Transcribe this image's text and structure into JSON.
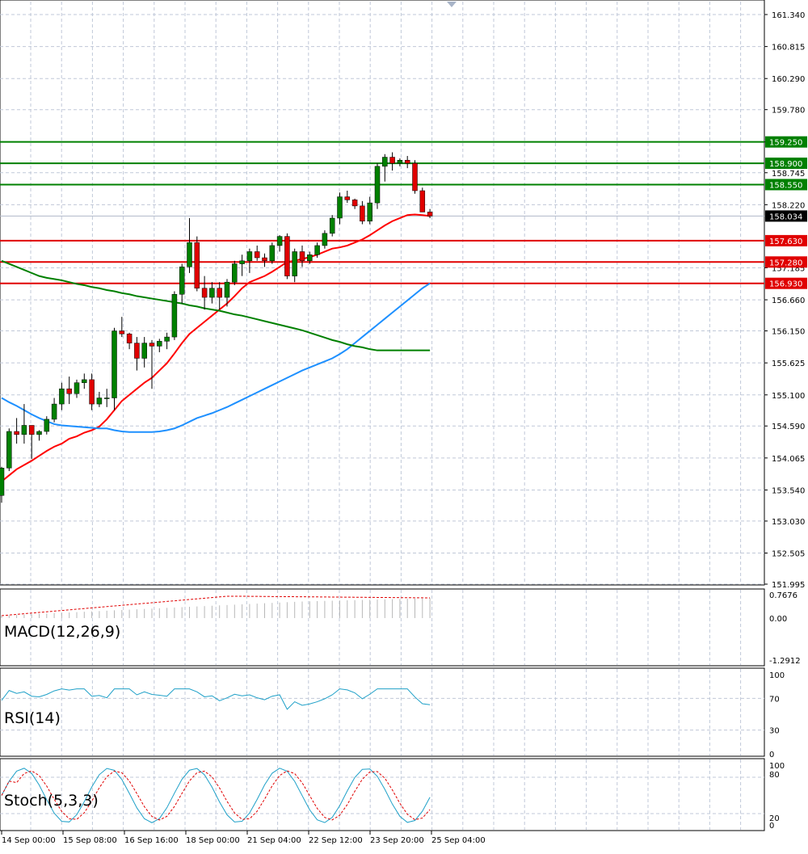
{
  "chart_data": {
    "type": "candlestick",
    "price_axis": {
      "ticks": [
        "161.340",
        "160.815",
        "160.290",
        "159.780",
        "159.250",
        "158.745",
        "158.220",
        "157.185",
        "156.660",
        "156.150",
        "155.625",
        "155.100",
        "154.590",
        "154.065",
        "153.540",
        "153.030",
        "152.505",
        "151.995"
      ],
      "ylim": [
        151.995,
        161.34
      ],
      "current_price": "158.034"
    },
    "time_axis": {
      "labels": [
        "14 Sep 00:00",
        "15 Sep 08:00",
        "16 Sep 16:00",
        "18 Sep 00:00",
        "21 Sep 04:00",
        "22 Sep 12:00",
        "23 Sep 20:00",
        "25 Sep 04:00"
      ]
    },
    "levels": [
      {
        "value": 159.25,
        "label": "159.250",
        "role": "resistance",
        "color": "#008000"
      },
      {
        "value": 158.9,
        "label": "158.900",
        "role": "resistance",
        "color": "#008000"
      },
      {
        "value": 158.55,
        "label": "158.550",
        "role": "resistance",
        "color": "#008000"
      },
      {
        "value": 157.63,
        "label": "157.630",
        "role": "support",
        "color": "#e00000"
      },
      {
        "value": 157.28,
        "label": "157.280",
        "role": "support",
        "color": "#e00000"
      },
      {
        "value": 156.93,
        "label": "156.930",
        "role": "support",
        "color": "#e00000"
      }
    ],
    "candles": [
      [
        153.45,
        153.92,
        153.33,
        153.9
      ],
      [
        153.9,
        154.55,
        153.85,
        154.5
      ],
      [
        154.5,
        154.72,
        154.3,
        154.45
      ],
      [
        154.45,
        154.95,
        154.3,
        154.6
      ],
      [
        154.6,
        154.6,
        154.05,
        154.45
      ],
      [
        154.45,
        154.52,
        154.35,
        154.5
      ],
      [
        154.5,
        154.75,
        154.45,
        154.7
      ],
      [
        154.7,
        155.05,
        154.65,
        154.95
      ],
      [
        154.95,
        155.3,
        154.85,
        155.2
      ],
      [
        155.2,
        155.4,
        154.95,
        155.12
      ],
      [
        155.12,
        155.35,
        155.05,
        155.3
      ],
      [
        155.3,
        155.45,
        155.2,
        155.35
      ],
      [
        155.35,
        155.45,
        154.85,
        154.95
      ],
      [
        154.95,
        155.15,
        154.9,
        155.05
      ],
      [
        155.05,
        155.2,
        154.9,
        155.05
      ],
      [
        155.05,
        156.2,
        154.85,
        156.15
      ],
      [
        156.15,
        156.38,
        156.05,
        156.1
      ],
      [
        156.1,
        156.12,
        155.85,
        155.95
      ],
      [
        155.95,
        156.05,
        155.5,
        155.7
      ],
      [
        155.7,
        156.05,
        155.55,
        155.95
      ],
      [
        155.95,
        156.0,
        155.2,
        155.9
      ],
      [
        155.9,
        156.02,
        155.8,
        155.98
      ],
      [
        155.98,
        156.12,
        155.85,
        156.05
      ],
      [
        156.05,
        156.8,
        156.0,
        156.75
      ],
      [
        156.75,
        157.25,
        156.6,
        157.2
      ],
      [
        157.2,
        158.0,
        157.1,
        157.6
      ],
      [
        157.6,
        157.7,
        156.8,
        156.85
      ],
      [
        156.85,
        157.05,
        156.5,
        156.7
      ],
      [
        156.7,
        156.95,
        156.6,
        156.85
      ],
      [
        156.85,
        156.95,
        156.5,
        156.7
      ],
      [
        156.7,
        157.0,
        156.55,
        156.95
      ],
      [
        156.95,
        157.3,
        156.9,
        157.25
      ],
      [
        157.25,
        157.4,
        157.05,
        157.3
      ],
      [
        157.3,
        157.5,
        157.1,
        157.45
      ],
      [
        157.45,
        157.55,
        157.3,
        157.35
      ],
      [
        157.35,
        157.42,
        157.2,
        157.3
      ],
      [
        157.3,
        157.6,
        157.25,
        157.55
      ],
      [
        157.55,
        157.72,
        157.45,
        157.7
      ],
      [
        157.7,
        157.75,
        157.0,
        157.05
      ],
      [
        157.05,
        157.5,
        156.95,
        157.45
      ],
      [
        157.45,
        157.55,
        157.2,
        157.3
      ],
      [
        157.3,
        157.45,
        157.25,
        157.4
      ],
      [
        157.4,
        157.6,
        157.35,
        157.55
      ],
      [
        157.55,
        157.8,
        157.5,
        157.75
      ],
      [
        157.75,
        158.05,
        157.7,
        158.0
      ],
      [
        158.0,
        158.42,
        157.9,
        158.35
      ],
      [
        158.35,
        158.45,
        158.25,
        158.3
      ],
      [
        158.3,
        158.32,
        158.15,
        158.2
      ],
      [
        158.2,
        158.28,
        157.9,
        157.95
      ],
      [
        157.95,
        158.35,
        157.9,
        158.25
      ],
      [
        158.25,
        158.9,
        158.15,
        158.85
      ],
      [
        158.85,
        159.05,
        158.6,
        159.0
      ],
      [
        159.0,
        159.08,
        158.78,
        158.9
      ],
      [
        158.9,
        158.98,
        158.85,
        158.95
      ],
      [
        158.95,
        159.02,
        158.82,
        158.9
      ],
      [
        158.9,
        158.95,
        158.4,
        158.45
      ],
      [
        158.45,
        158.5,
        158.1,
        158.1
      ],
      [
        158.1,
        158.15,
        158.0,
        158.034
      ]
    ],
    "moving_averages": [
      {
        "color": "#ff0000",
        "values": [
          153.68,
          153.78,
          153.88,
          153.95,
          154.02,
          154.1,
          154.18,
          154.25,
          154.3,
          154.38,
          154.42,
          154.48,
          154.52,
          154.58,
          154.7,
          154.85,
          155.0,
          155.1,
          155.2,
          155.3,
          155.38,
          155.5,
          155.62,
          155.78,
          155.95,
          156.1,
          156.2,
          156.3,
          156.4,
          156.5,
          156.6,
          156.72,
          156.85,
          156.95,
          157.0,
          157.05,
          157.12,
          157.2,
          157.28,
          157.3,
          157.33,
          157.36,
          157.4,
          157.45,
          157.5,
          157.52,
          157.55,
          157.6,
          157.65,
          157.72,
          157.8,
          157.88,
          157.95,
          158.0,
          158.05,
          158.06,
          158.05,
          158.034
        ]
      },
      {
        "color": "#1e90ff",
        "values": [
          155.05,
          154.98,
          154.92,
          154.85,
          154.78,
          154.72,
          154.67,
          154.62,
          154.6,
          154.59,
          154.58,
          154.57,
          154.56,
          154.55,
          154.55,
          154.52,
          154.5,
          154.49,
          154.49,
          154.49,
          154.49,
          154.5,
          154.52,
          154.55,
          154.6,
          154.66,
          154.72,
          154.76,
          154.8,
          154.85,
          154.9,
          154.96,
          155.02,
          155.08,
          155.14,
          155.2,
          155.26,
          155.32,
          155.38,
          155.44,
          155.5,
          155.55,
          155.6,
          155.65,
          155.7,
          155.77,
          155.85,
          155.95,
          156.05,
          156.15,
          156.25,
          156.35,
          156.45,
          156.55,
          156.65,
          156.75,
          156.85,
          156.93
        ]
      },
      {
        "color": "#008000",
        "values": [
          157.3,
          157.25,
          157.2,
          157.15,
          157.1,
          157.05,
          157.02,
          157.0,
          156.98,
          156.95,
          156.92,
          156.9,
          156.87,
          156.85,
          156.82,
          156.8,
          156.77,
          156.75,
          156.72,
          156.7,
          156.68,
          156.66,
          156.64,
          156.62,
          156.6,
          156.57,
          156.55,
          156.52,
          156.5,
          156.48,
          156.45,
          156.42,
          156.4,
          156.37,
          156.34,
          156.31,
          156.28,
          156.25,
          156.22,
          156.19,
          156.16,
          156.12,
          156.08,
          156.04,
          156.0,
          155.97,
          155.93,
          155.9,
          155.88,
          155.85,
          155.83,
          155.83,
          155.83,
          155.83,
          155.83,
          155.83,
          155.83,
          155.83
        ]
      }
    ],
    "macd": {
      "label": "MACD(12,26,9)",
      "ticks": [
        "0.7676",
        "0.00",
        "-1.2912"
      ]
    },
    "rsi": {
      "label": "RSI(14)",
      "ticks": [
        "100",
        "70",
        "30",
        "0"
      ]
    },
    "stoch": {
      "label": "Stoch(5,3,3)",
      "ticks": [
        "100",
        "80",
        "20",
        "0"
      ]
    },
    "colors": {
      "up": "#008000",
      "down": "#e00000",
      "grid": "#c0c8d8"
    }
  }
}
